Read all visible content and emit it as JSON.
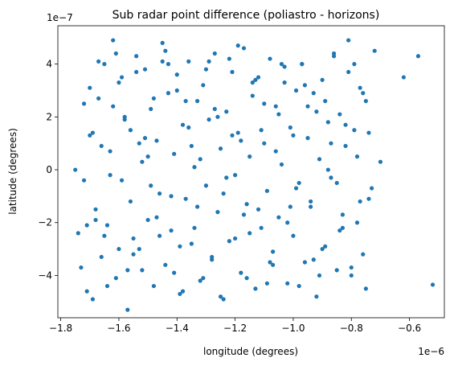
{
  "chart_data": {
    "type": "scatter",
    "title": "Sub radar point difference (poliastro - horizons)",
    "xlabel": "longitude (degrees)",
    "ylabel": "latitude (degrees)",
    "x_offset_label": "1e−6",
    "y_offset_label": "1e−7",
    "xlim": [
      -1.81,
      -0.48
    ],
    "ylim": [
      -5.6,
      5.45
    ],
    "x_ticks": [
      -1.8,
      -1.6,
      -1.4,
      -1.2,
      -1.0,
      -0.8,
      -0.6
    ],
    "x_tick_labels": [
      "−1.8",
      "−1.6",
      "−1.4",
      "−1.2",
      "−1.0",
      "−0.8",
      "−0.6"
    ],
    "y_ticks": [
      -4,
      -2,
      0,
      2,
      4
    ],
    "y_tick_labels": [
      "−4",
      "−2",
      "0",
      "2",
      "4"
    ],
    "grid": false,
    "marker_color": "#1f77b4",
    "series": [
      {
        "x": [
          -1.75,
          -1.73,
          -1.72,
          -1.71,
          -1.7,
          -1.69,
          -1.68,
          -1.67,
          -1.66,
          -1.65,
          -1.64,
          -1.63,
          -1.62,
          -1.61,
          -1.6,
          -1.59,
          -1.58,
          -1.57,
          -1.56,
          -1.55,
          -1.54,
          -1.53,
          -1.52,
          -1.51,
          -1.5,
          -1.49,
          -1.48,
          -1.47,
          -1.46,
          -1.45,
          -1.44,
          -1.43,
          -1.42,
          -1.41,
          -1.4,
          -1.39,
          -1.38,
          -1.37,
          -1.36,
          -1.35,
          -1.34,
          -1.33,
          -1.32,
          -1.31,
          -1.3,
          -1.29,
          -1.28,
          -1.27,
          -1.26,
          -1.25,
          -1.24,
          -1.23,
          -1.22,
          -1.21,
          -1.2,
          -1.19,
          -1.18,
          -1.17,
          -1.16,
          -1.15,
          -1.14,
          -1.13,
          -1.12,
          -1.11,
          -1.1,
          -1.09,
          -1.08,
          -1.07,
          -1.06,
          -1.05,
          -1.04,
          -1.03,
          -1.02,
          -1.01,
          -1.0,
          -0.99,
          -0.98,
          -0.97,
          -0.96,
          -0.95,
          -0.94,
          -0.93,
          -0.92,
          -0.91,
          -0.9,
          -0.89,
          -0.88,
          -0.87,
          -0.86,
          -0.85,
          -0.84,
          -0.83,
          -0.82,
          -0.81,
          -0.8,
          -0.79,
          -0.78,
          -0.77,
          -0.76,
          -0.75,
          -0.73,
          -0.72,
          -0.7,
          -0.62,
          -0.57,
          -0.52,
          -1.74,
          -1.72,
          -1.7,
          -1.68,
          -1.66,
          -1.64,
          -1.62,
          -1.6,
          -1.58,
          -1.56,
          -1.54,
          -1.52,
          -1.5,
          -1.48,
          -1.46,
          -1.44,
          -1.42,
          -1.4,
          -1.38,
          -1.36,
          -1.34,
          -1.32,
          -1.3,
          -1.28,
          -1.26,
          -1.24,
          -1.22,
          -1.2,
          -1.18,
          -1.16,
          -1.14,
          -1.12,
          -1.1,
          -1.08,
          -1.06,
          -1.04,
          -1.02,
          -1.0,
          -0.98,
          -0.96,
          -0.94,
          -0.92,
          -0.9,
          -0.88,
          -0.86,
          -0.84,
          -0.82,
          -0.8,
          -0.78,
          -0.76,
          -0.74,
          -1.71,
          -1.67,
          -1.63,
          -1.59,
          -1.55,
          -1.51,
          -1.47,
          -1.43,
          -1.39,
          -1.35,
          -1.31,
          -1.27,
          -1.23,
          -1.19,
          -1.15,
          -1.11,
          -1.07,
          -1.03,
          -0.99,
          -0.95,
          -0.91,
          -0.87,
          -0.83,
          -0.79,
          -0.75,
          -1.69,
          -1.65,
          -1.61,
          -1.57,
          -1.53,
          -1.49,
          -1.45,
          -1.41,
          -1.37,
          -1.33,
          -1.29,
          -1.25,
          -1.21,
          -1.17,
          -1.13,
          -1.09,
          -1.05,
          -1.01,
          -0.97,
          -0.93,
          -0.89,
          -0.85,
          -0.81,
          -0.77,
          -0.74
        ],
        "y": [
          0.0,
          -3.7,
          2.5,
          -4.6,
          1.3,
          -4.9,
          -1.5,
          2.7,
          -3.3,
          4.0,
          -2.1,
          0.7,
          4.9,
          -4.1,
          3.3,
          -0.4,
          2.0,
          -5.3,
          1.5,
          -2.6,
          4.3,
          -3.0,
          0.3,
          3.8,
          -1.9,
          2.3,
          -4.4,
          1.1,
          -0.9,
          4.8,
          -3.6,
          2.9,
          -2.3,
          0.6,
          3.6,
          -4.7,
          1.7,
          -1.1,
          4.1,
          -2.8,
          0.1,
          2.6,
          -4.2,
          3.2,
          -0.6,
          1.9,
          -3.4,
          4.4,
          -1.6,
          0.8,
          -4.9,
          2.2,
          -2.7,
          3.7,
          -0.2,
          1.4,
          -3.9,
          4.6,
          -1.3,
          0.5,
          2.8,
          -4.5,
          3.5,
          -2.2,
          1.0,
          -0.8,
          4.2,
          -3.1,
          2.4,
          -1.8,
          0.2,
          3.9,
          -4.3,
          1.6,
          -2.5,
          3.0,
          -0.5,
          4.0,
          -3.5,
          1.2,
          -1.4,
          2.9,
          -4.8,
          0.4,
          3.4,
          -2.9,
          1.8,
          -0.3,
          4.3,
          -3.8,
          2.1,
          -1.7,
          0.9,
          4.9,
          -4.0,
          1.5,
          -2.0,
          3.1,
          -3.2,
          2.6,
          -0.7,
          4.5,
          0.3,
          3.5,
          4.3,
          -4.35,
          -2.4,
          -0.4,
          3.1,
          -1.9,
          0.9,
          -4.4,
          2.4,
          -3.0,
          1.9,
          -1.2,
          3.7,
          -3.8,
          0.5,
          2.7,
          -2.5,
          4.5,
          -1.0,
          3.0,
          -4.6,
          1.6,
          -2.2,
          0.4,
          3.8,
          -3.3,
          2.0,
          -0.9,
          4.2,
          -2.6,
          1.1,
          -4.1,
          3.3,
          -1.5,
          2.5,
          -3.5,
          0.7,
          4.0,
          -2.0,
          1.3,
          -4.4,
          3.2,
          -1.2,
          2.2,
          -3.0,
          0.0,
          4.4,
          -2.3,
          1.7,
          -3.7,
          0.5,
          2.9,
          -1.1,
          -2.1,
          4.1,
          -0.2,
          3.5,
          -3.2,
          1.2,
          -1.8,
          4.0,
          -2.9,
          0.9,
          -4.1,
          2.3,
          -0.3,
          4.7,
          -2.4,
          1.5,
          -3.6,
          3.3,
          -0.7,
          2.4,
          -4.0,
          1.0,
          -2.2,
          4.0,
          -4.5,
          1.4,
          -2.5,
          4.4,
          -3.8,
          1.0,
          -0.6,
          4.1,
          -3.9,
          2.6,
          -1.4,
          4.1,
          -4.8,
          1.3,
          -1.7,
          3.4,
          -4.3,
          2.1,
          -1.4,
          4.0,
          -3.4,
          2.6,
          -0.5,
          3.7,
          -1.2,
          1.4
        ]
      }
    ]
  }
}
